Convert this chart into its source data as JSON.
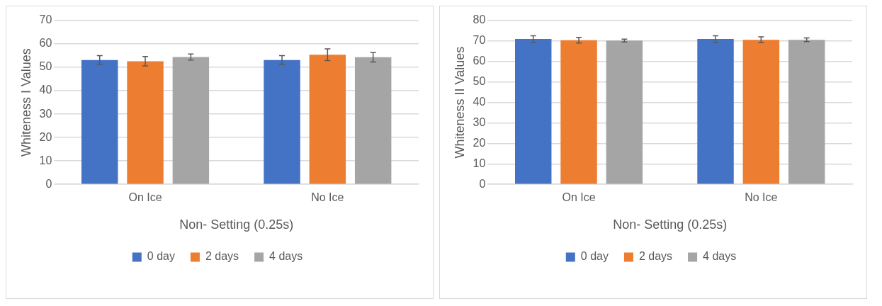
{
  "chart_data": [
    {
      "type": "bar",
      "xlabel": "Non- Setting (0.25s)",
      "ylabel": "Whiteness I Values",
      "categories": [
        "On Ice",
        "No Ice"
      ],
      "ylim": [
        0,
        70
      ],
      "yticks": [
        0,
        10,
        20,
        30,
        40,
        50,
        60,
        70
      ],
      "grid": "y",
      "legend": "bottom",
      "series": [
        {
          "name": "0 day",
          "color": "#4472c4",
          "values": [
            53.1,
            53.1
          ],
          "errors": [
            1.9,
            1.9
          ]
        },
        {
          "name": "2 days",
          "color": "#ed7d31",
          "values": [
            52.6,
            55.4
          ],
          "errors": [
            2.0,
            2.5
          ]
        },
        {
          "name": "4 days",
          "color": "#a5a5a5",
          "values": [
            54.4,
            54.3
          ],
          "errors": [
            1.3,
            2.0
          ]
        }
      ]
    },
    {
      "type": "bar",
      "xlabel": "Non- Setting (0.25s)",
      "ylabel": "Whiteness II Values",
      "categories": [
        "On Ice",
        "No Ice"
      ],
      "ylim": [
        0,
        80
      ],
      "yticks": [
        0,
        10,
        20,
        30,
        40,
        50,
        60,
        70,
        80
      ],
      "grid": "y",
      "legend": "bottom",
      "series": [
        {
          "name": "0 day",
          "color": "#4472c4",
          "values": [
            71.0,
            71.0
          ],
          "errors": [
            1.6,
            1.6
          ]
        },
        {
          "name": "2 days",
          "color": "#ed7d31",
          "values": [
            70.4,
            70.6
          ],
          "errors": [
            1.4,
            1.4
          ]
        },
        {
          "name": "4 days",
          "color": "#a5a5a5",
          "values": [
            70.2,
            70.6
          ],
          "errors": [
            0.7,
            0.9
          ]
        }
      ]
    }
  ]
}
